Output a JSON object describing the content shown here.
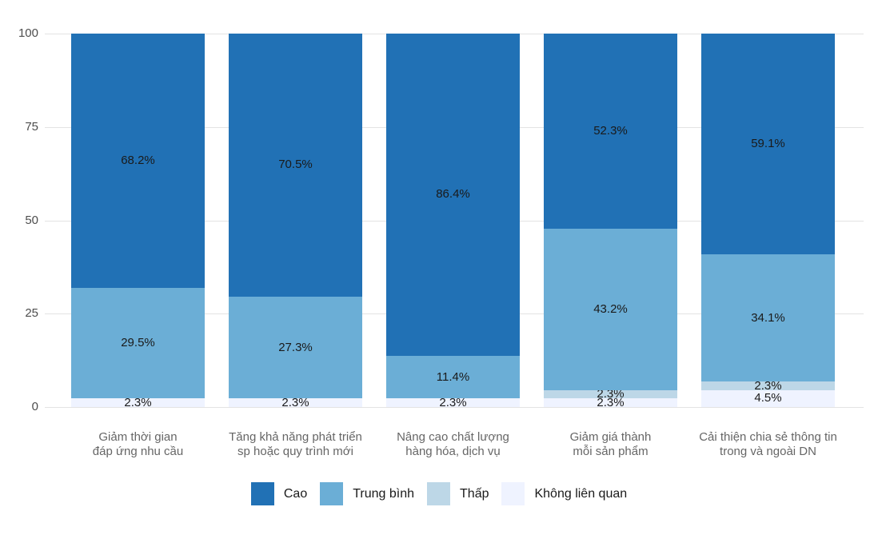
{
  "chart_data": {
    "type": "bar",
    "stacked": true,
    "title": "",
    "xlabel": "",
    "ylabel": "",
    "ylim": [
      0,
      100
    ],
    "yticks": [
      0,
      25,
      50,
      75,
      100
    ],
    "grid": "horizontal",
    "legend_position": "bottom",
    "value_label_suffix": "%",
    "categories": [
      "Giảm thời gian\nđáp ứng nhu cầu",
      "Tăng khả năng phát triển\nsp hoặc quy trình mới",
      "Nâng cao chất lượng\nhàng hóa, dịch vụ",
      "Giảm giá thành\nmỗi sản phẩm",
      "Cải thiện chia sẻ thông tin\ntrong và ngoài DN"
    ],
    "series": [
      {
        "name": "Cao",
        "color": "#2171B5",
        "values": [
          68.2,
          70.5,
          86.4,
          52.3,
          59.1
        ]
      },
      {
        "name": "Trung bình",
        "color": "#6BAED6",
        "values": [
          29.5,
          27.3,
          11.4,
          43.2,
          34.1
        ]
      },
      {
        "name": "Thấp",
        "color": "#BDD7E7",
        "values": [
          0,
          0,
          0,
          2.3,
          2.3
        ]
      },
      {
        "name": "Không liên quan",
        "color": "#EFF3FF",
        "values": [
          2.3,
          2.3,
          2.3,
          2.3,
          4.5
        ]
      }
    ],
    "stack_order_bottom_to_top": [
      "Không liên quan",
      "Thấp",
      "Trung bình",
      "Cao"
    ],
    "visible_value_labels": {
      "Cao": [
        "68.2%",
        "70.5%",
        "86.4%",
        "52.3%",
        "59.1%"
      ],
      "Trung bình": [
        "29.5%",
        "27.3%",
        "11.4%",
        "43.2%",
        "34.1%"
      ],
      "Thấp": [
        "",
        "",
        "",
        "2.3%",
        "2.3%"
      ],
      "Không liên quan": [
        "2.3%",
        "2.3%",
        "2.3%",
        "2.3%",
        "4.5%"
      ]
    }
  },
  "colors": {
    "background": "#ffffff",
    "gridline": "#e3e3e3",
    "axis_text": "#4d4d4d",
    "category_text": "#666666",
    "value_text": "#1a1a1a"
  }
}
